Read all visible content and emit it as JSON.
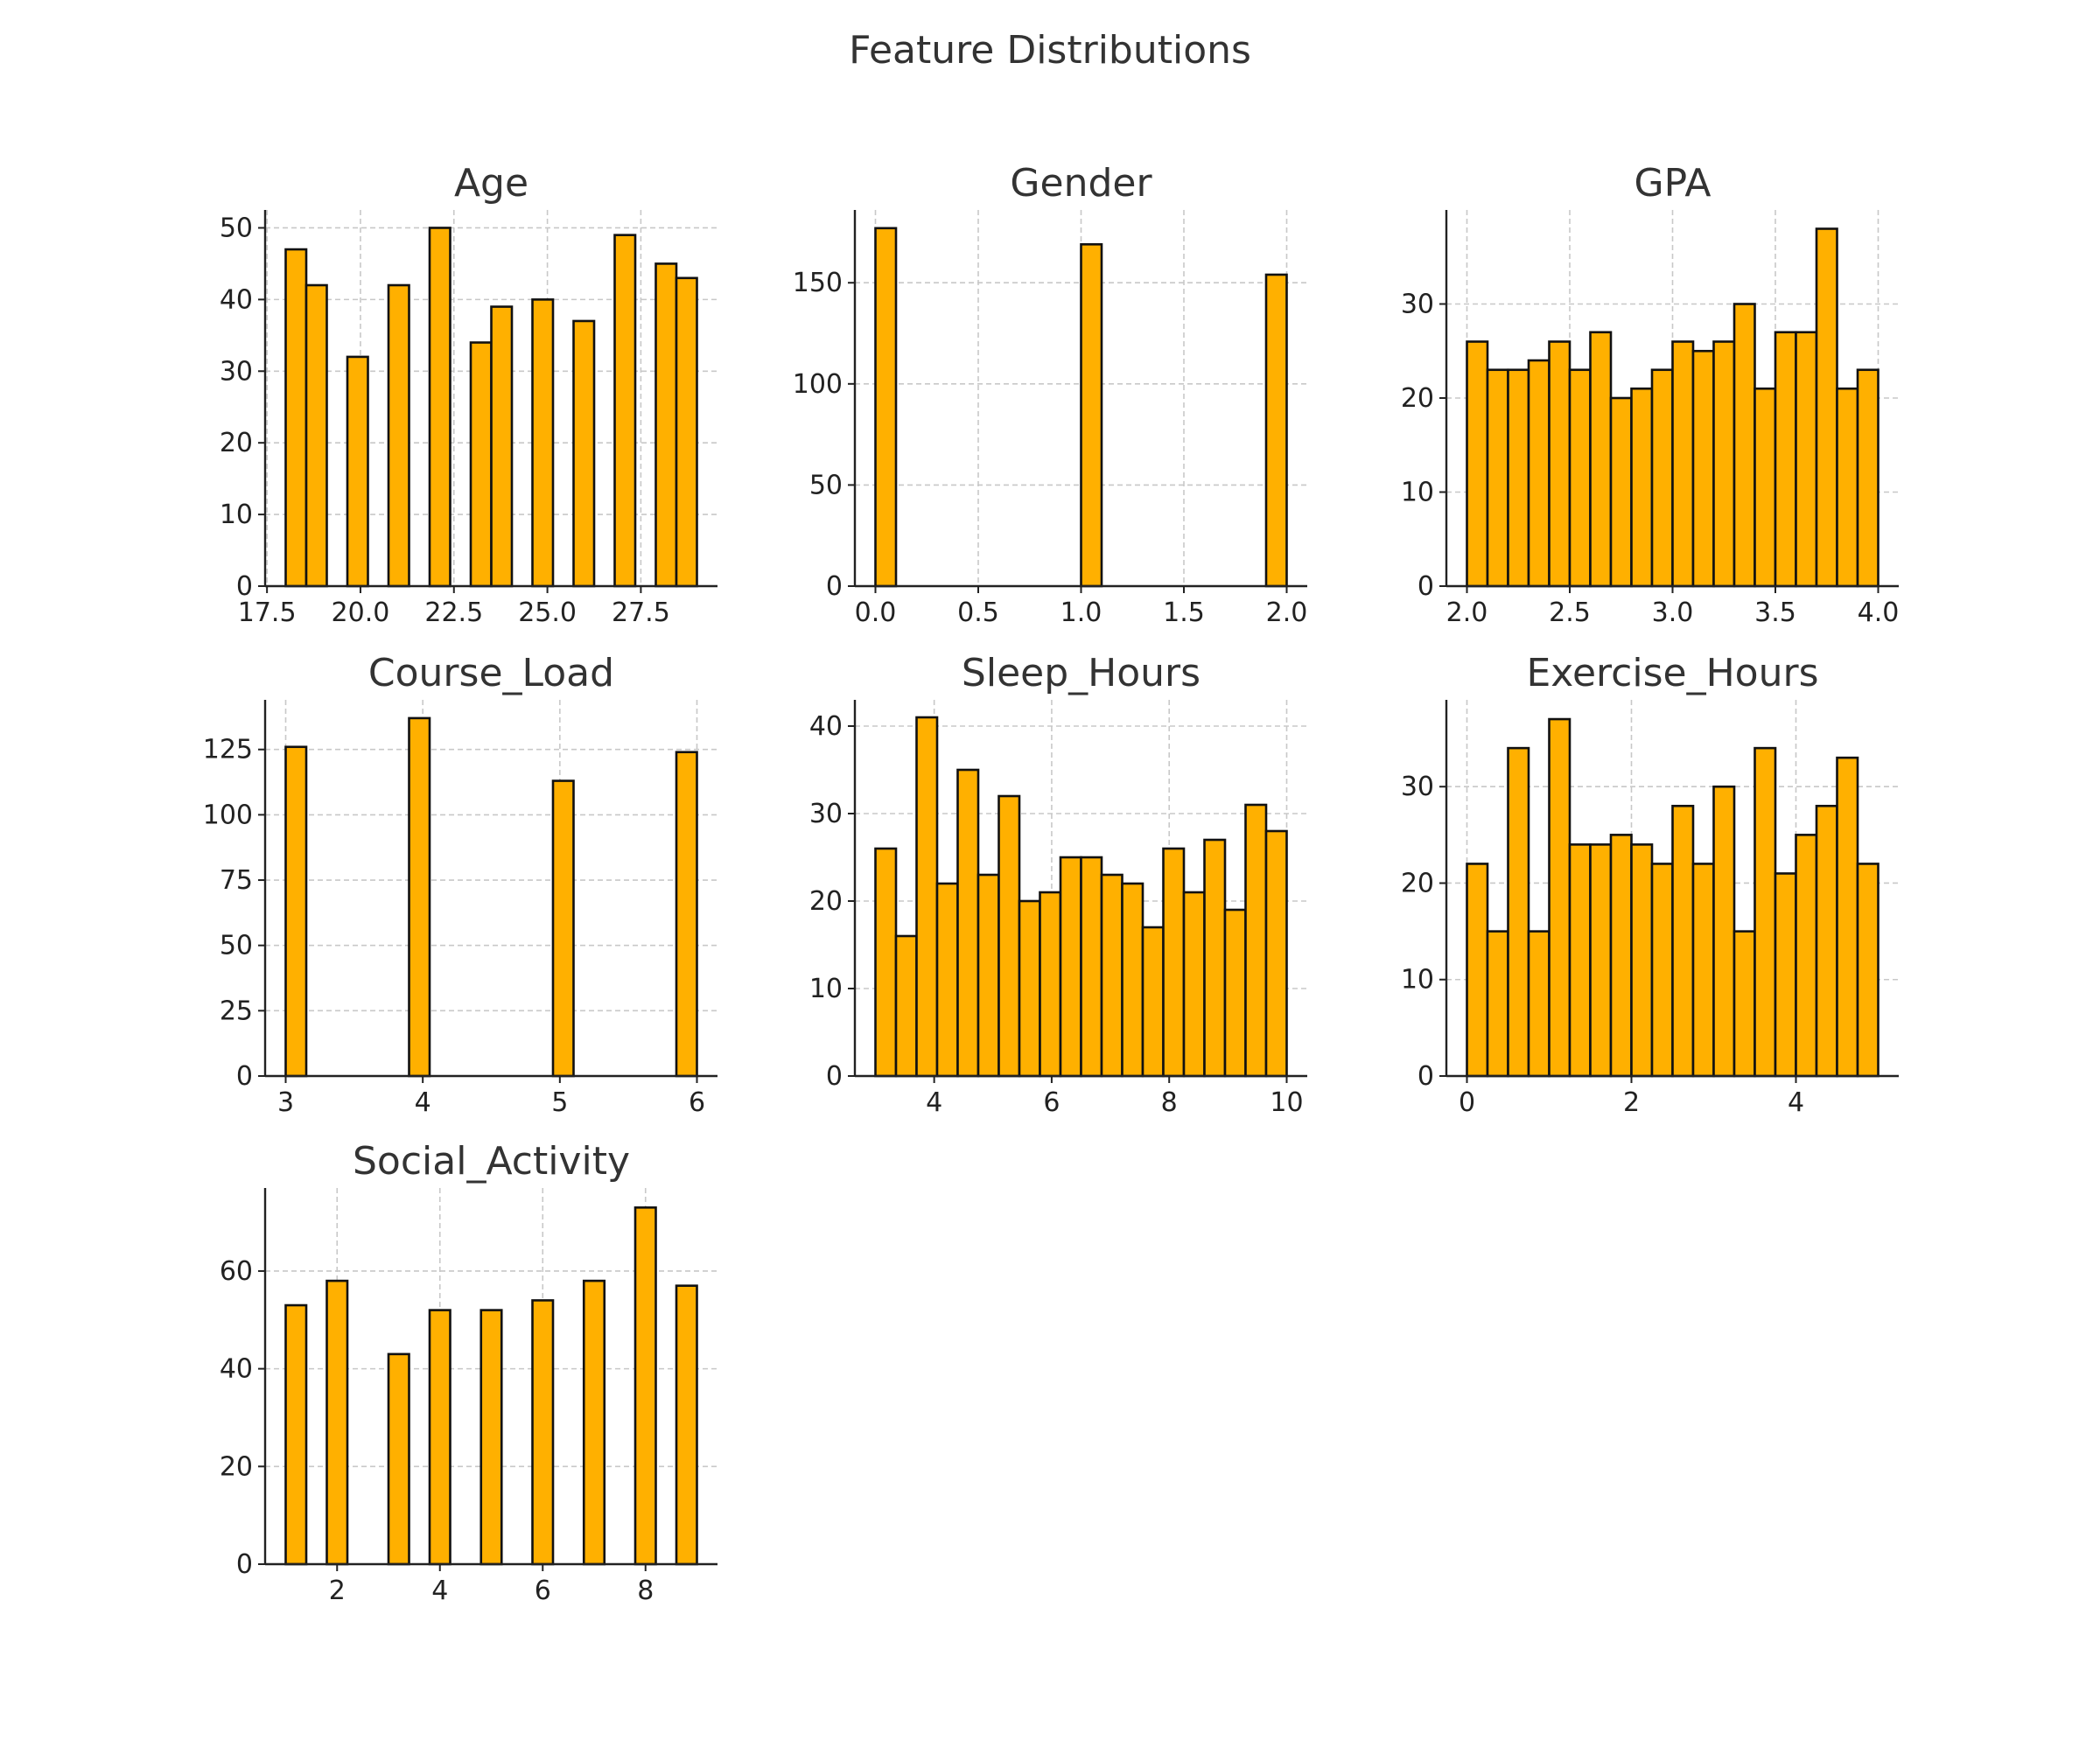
{
  "figure": {
    "title": "Feature Distributions",
    "bar_color": "#FFB000",
    "edge_color": "#000000"
  },
  "chart_data": [
    {
      "type": "bar",
      "title": "Age",
      "xlabel": "",
      "ylabel": "",
      "grid": true,
      "xlim": [
        17.45,
        29.55
      ],
      "ylim": [
        0,
        52.5
      ],
      "xticks": [
        17.5,
        20.0,
        22.5,
        25.0,
        27.5
      ],
      "xtick_labels": [
        "17.5",
        "20.0",
        "22.5",
        "25.0",
        "27.5"
      ],
      "yticks": [
        0,
        10,
        20,
        30,
        40,
        50
      ],
      "ytick_labels": [
        "0",
        "10",
        "20",
        "30",
        "40",
        "50"
      ],
      "bins": [
        {
          "x0": 18.0,
          "x1": 18.55,
          "count": 47
        },
        {
          "x0": 18.55,
          "x1": 19.1,
          "count": 42
        },
        {
          "x0": 19.65,
          "x1": 20.2,
          "count": 32
        },
        {
          "x0": 20.75,
          "x1": 21.3,
          "count": 42
        },
        {
          "x0": 21.85,
          "x1": 22.4,
          "count": 50
        },
        {
          "x0": 22.95,
          "x1": 23.5,
          "count": 34
        },
        {
          "x0": 23.5,
          "x1": 24.05,
          "count": 39
        },
        {
          "x0": 24.6,
          "x1": 25.15,
          "count": 40
        },
        {
          "x0": 25.7,
          "x1": 26.25,
          "count": 37
        },
        {
          "x0": 26.8,
          "x1": 27.35,
          "count": 49
        },
        {
          "x0": 27.9,
          "x1": 28.45,
          "count": 45
        },
        {
          "x0": 28.45,
          "x1": 29.0,
          "count": 43
        }
      ]
    },
    {
      "type": "bar",
      "title": "Gender",
      "xlabel": "",
      "ylabel": "",
      "grid": true,
      "xlim": [
        -0.1,
        2.1
      ],
      "ylim": [
        0,
        186
      ],
      "xticks": [
        0.0,
        0.5,
        1.0,
        1.5,
        2.0
      ],
      "xtick_labels": [
        "0.0",
        "0.5",
        "1.0",
        "1.5",
        "2.0"
      ],
      "yticks": [
        0,
        50,
        100,
        150
      ],
      "ytick_labels": [
        "0",
        "50",
        "100",
        "150"
      ],
      "bins": [
        {
          "x0": 0.0,
          "x1": 0.1,
          "count": 177
        },
        {
          "x0": 1.0,
          "x1": 1.1,
          "count": 169
        },
        {
          "x0": 1.9,
          "x1": 2.0,
          "count": 154
        }
      ]
    },
    {
      "type": "bar",
      "title": "GPA",
      "xlabel": "",
      "ylabel": "",
      "grid": true,
      "xlim": [
        1.9,
        4.1
      ],
      "ylim": [
        0,
        40
      ],
      "xticks": [
        2.0,
        2.5,
        3.0,
        3.5,
        4.0
      ],
      "xtick_labels": [
        "2.0",
        "2.5",
        "3.0",
        "3.5",
        "4.0"
      ],
      "yticks": [
        0,
        10,
        20,
        30
      ],
      "ytick_labels": [
        "0",
        "10",
        "20",
        "30"
      ],
      "bins": [
        {
          "x0": 2.0,
          "x1": 2.1,
          "count": 26
        },
        {
          "x0": 2.1,
          "x1": 2.2,
          "count": 23
        },
        {
          "x0": 2.2,
          "x1": 2.3,
          "count": 23
        },
        {
          "x0": 2.3,
          "x1": 2.4,
          "count": 24
        },
        {
          "x0": 2.4,
          "x1": 2.5,
          "count": 26
        },
        {
          "x0": 2.5,
          "x1": 2.6,
          "count": 23
        },
        {
          "x0": 2.6,
          "x1": 2.7,
          "count": 27
        },
        {
          "x0": 2.7,
          "x1": 2.8,
          "count": 20
        },
        {
          "x0": 2.8,
          "x1": 2.9,
          "count": 21
        },
        {
          "x0": 2.9,
          "x1": 3.0,
          "count": 23
        },
        {
          "x0": 3.0,
          "x1": 3.1,
          "count": 26
        },
        {
          "x0": 3.1,
          "x1": 3.2,
          "count": 25
        },
        {
          "x0": 3.2,
          "x1": 3.3,
          "count": 26
        },
        {
          "x0": 3.3,
          "x1": 3.4,
          "count": 30
        },
        {
          "x0": 3.4,
          "x1": 3.5,
          "count": 21
        },
        {
          "x0": 3.5,
          "x1": 3.6,
          "count": 27
        },
        {
          "x0": 3.6,
          "x1": 3.7,
          "count": 27
        },
        {
          "x0": 3.7,
          "x1": 3.8,
          "count": 38
        },
        {
          "x0": 3.8,
          "x1": 3.9,
          "count": 21
        },
        {
          "x0": 3.9,
          "x1": 4.0,
          "count": 23
        }
      ]
    },
    {
      "type": "bar",
      "title": "Course_Load",
      "xlabel": "",
      "ylabel": "",
      "grid": true,
      "xlim": [
        2.85,
        6.15
      ],
      "ylim": [
        0,
        144
      ],
      "xticks": [
        3,
        4,
        5,
        6
      ],
      "xtick_labels": [
        "3",
        "4",
        "5",
        "6"
      ],
      "yticks": [
        0,
        25,
        50,
        75,
        100,
        125
      ],
      "ytick_labels": [
        "0",
        "25",
        "50",
        "75",
        "100",
        "125"
      ],
      "bins": [
        {
          "x0": 3.0,
          "x1": 3.15,
          "count": 126
        },
        {
          "x0": 3.9,
          "x1": 4.05,
          "count": 137
        },
        {
          "x0": 4.95,
          "x1": 5.1,
          "count": 113
        },
        {
          "x0": 5.85,
          "x1": 6.0,
          "count": 124
        }
      ]
    },
    {
      "type": "bar",
      "title": "Sleep_Hours",
      "xlabel": "",
      "ylabel": "",
      "grid": true,
      "xlim": [
        2.65,
        10.35
      ],
      "ylim": [
        0,
        43
      ],
      "xticks": [
        4,
        6,
        8,
        10
      ],
      "xtick_labels": [
        "4",
        "6",
        "8",
        "10"
      ],
      "yticks": [
        0,
        10,
        20,
        30,
        40
      ],
      "ytick_labels": [
        "0",
        "10",
        "20",
        "30",
        "40"
      ],
      "bins": [
        {
          "x0": 3.0,
          "x1": 3.35,
          "count": 26
        },
        {
          "x0": 3.35,
          "x1": 3.7,
          "count": 16
        },
        {
          "x0": 3.7,
          "x1": 4.05,
          "count": 41
        },
        {
          "x0": 4.05,
          "x1": 4.4,
          "count": 22
        },
        {
          "x0": 4.4,
          "x1": 4.75,
          "count": 35
        },
        {
          "x0": 4.75,
          "x1": 5.1,
          "count": 23
        },
        {
          "x0": 5.1,
          "x1": 5.45,
          "count": 32
        },
        {
          "x0": 5.45,
          "x1": 5.8,
          "count": 20
        },
        {
          "x0": 5.8,
          "x1": 6.15,
          "count": 21
        },
        {
          "x0": 6.15,
          "x1": 6.5,
          "count": 25
        },
        {
          "x0": 6.5,
          "x1": 6.85,
          "count": 25
        },
        {
          "x0": 6.85,
          "x1": 7.2,
          "count": 23
        },
        {
          "x0": 7.2,
          "x1": 7.55,
          "count": 22
        },
        {
          "x0": 7.55,
          "x1": 7.9,
          "count": 17
        },
        {
          "x0": 7.9,
          "x1": 8.25,
          "count": 26
        },
        {
          "x0": 8.25,
          "x1": 8.6,
          "count": 21
        },
        {
          "x0": 8.6,
          "x1": 8.95,
          "count": 27
        },
        {
          "x0": 8.95,
          "x1": 9.3,
          "count": 19
        },
        {
          "x0": 9.3,
          "x1": 9.65,
          "count": 31
        },
        {
          "x0": 9.65,
          "x1": 10.0,
          "count": 28
        }
      ]
    },
    {
      "type": "bar",
      "title": "Exercise_Hours",
      "xlabel": "",
      "ylabel": "",
      "grid": true,
      "xlim": [
        -0.25,
        5.25
      ],
      "ylim": [
        0,
        39
      ],
      "xticks": [
        0,
        2,
        4
      ],
      "xtick_labels": [
        "0",
        "2",
        "4"
      ],
      "yticks": [
        0,
        10,
        20,
        30
      ],
      "ytick_labels": [
        "0",
        "10",
        "20",
        "30"
      ],
      "bins": [
        {
          "x0": 0.0,
          "x1": 0.25,
          "count": 22
        },
        {
          "x0": 0.25,
          "x1": 0.5,
          "count": 15
        },
        {
          "x0": 0.5,
          "x1": 0.75,
          "count": 34
        },
        {
          "x0": 0.75,
          "x1": 1.0,
          "count": 15
        },
        {
          "x0": 1.0,
          "x1": 1.25,
          "count": 37
        },
        {
          "x0": 1.25,
          "x1": 1.5,
          "count": 24
        },
        {
          "x0": 1.5,
          "x1": 1.75,
          "count": 24
        },
        {
          "x0": 1.75,
          "x1": 2.0,
          "count": 25
        },
        {
          "x0": 2.0,
          "x1": 2.25,
          "count": 24
        },
        {
          "x0": 2.25,
          "x1": 2.5,
          "count": 22
        },
        {
          "x0": 2.5,
          "x1": 2.75,
          "count": 28
        },
        {
          "x0": 2.75,
          "x1": 3.0,
          "count": 22
        },
        {
          "x0": 3.0,
          "x1": 3.25,
          "count": 30
        },
        {
          "x0": 3.25,
          "x1": 3.5,
          "count": 15
        },
        {
          "x0": 3.5,
          "x1": 3.75,
          "count": 34
        },
        {
          "x0": 3.75,
          "x1": 4.0,
          "count": 21
        },
        {
          "x0": 4.0,
          "x1": 4.25,
          "count": 25
        },
        {
          "x0": 4.25,
          "x1": 4.5,
          "count": 28
        },
        {
          "x0": 4.5,
          "x1": 4.75,
          "count": 33
        },
        {
          "x0": 4.75,
          "x1": 5.0,
          "count": 22
        }
      ]
    },
    {
      "type": "bar",
      "title": "Social_Activity",
      "xlabel": "",
      "ylabel": "",
      "grid": true,
      "xlim": [
        0.6,
        9.4
      ],
      "ylim": [
        0,
        77
      ],
      "xticks": [
        2,
        4,
        6,
        8
      ],
      "xtick_labels": [
        "2",
        "4",
        "6",
        "8"
      ],
      "yticks": [
        0,
        20,
        40,
        60
      ],
      "ytick_labels": [
        "0",
        "20",
        "40",
        "60"
      ],
      "bins": [
        {
          "x0": 1.0,
          "x1": 1.4,
          "count": 53
        },
        {
          "x0": 1.8,
          "x1": 2.2,
          "count": 58
        },
        {
          "x0": 3.0,
          "x1": 3.4,
          "count": 43
        },
        {
          "x0": 3.8,
          "x1": 4.2,
          "count": 52
        },
        {
          "x0": 4.8,
          "x1": 5.2,
          "count": 52
        },
        {
          "x0": 5.8,
          "x1": 6.2,
          "count": 54
        },
        {
          "x0": 6.8,
          "x1": 7.2,
          "count": 58
        },
        {
          "x0": 7.8,
          "x1": 8.2,
          "count": 73
        },
        {
          "x0": 8.6,
          "x1": 9.0,
          "count": 57
        }
      ]
    }
  ]
}
